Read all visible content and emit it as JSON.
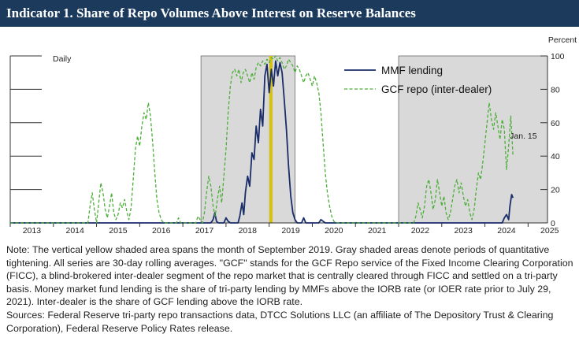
{
  "title": "Indicator 1. Share of Repo Volumes Above Interest on Reserve Balances",
  "chart_data": {
    "type": "line",
    "frequency_label": "Daily",
    "y_unit_label": "Percent",
    "ylim": [
      0,
      100
    ],
    "y_ticks": [
      0,
      20,
      40,
      60,
      80,
      100
    ],
    "x_ticks": [
      "2013",
      "2014",
      "2015",
      "2016",
      "2017",
      "2018",
      "2019",
      "2020",
      "2021",
      "2022",
      "2023",
      "2024",
      "2025"
    ],
    "xlim": [
      2013.0,
      2025.45
    ],
    "annotation": {
      "text": "Jan. 15",
      "x": 2024.54,
      "y": 52
    },
    "shaded_periods_gray": [
      [
        2017.42,
        2019.6
      ],
      [
        2022.0,
        2025.45
      ]
    ],
    "shaded_period_yellow": [
      2019.0,
      2019.08
    ],
    "series": [
      {
        "name": "MMF lending",
        "color": "#1a2d6b",
        "style": "solid",
        "points": [
          [
            2013.0,
            0
          ],
          [
            2017.65,
            0
          ],
          [
            2017.7,
            2
          ],
          [
            2017.74,
            6
          ],
          [
            2017.78,
            1
          ],
          [
            2017.82,
            0
          ],
          [
            2017.95,
            0
          ],
          [
            2018.0,
            3
          ],
          [
            2018.05,
            1
          ],
          [
            2018.1,
            0
          ],
          [
            2018.28,
            0
          ],
          [
            2018.32,
            4
          ],
          [
            2018.37,
            12
          ],
          [
            2018.41,
            5
          ],
          [
            2018.45,
            18
          ],
          [
            2018.5,
            28
          ],
          [
            2018.55,
            22
          ],
          [
            2018.6,
            42
          ],
          [
            2018.65,
            38
          ],
          [
            2018.7,
            58
          ],
          [
            2018.75,
            48
          ],
          [
            2018.8,
            68
          ],
          [
            2018.85,
            58
          ],
          [
            2018.9,
            88
          ],
          [
            2018.95,
            95
          ],
          [
            2019.0,
            78
          ],
          [
            2019.05,
            92
          ],
          [
            2019.1,
            82
          ],
          [
            2019.15,
            97
          ],
          [
            2019.2,
            88
          ],
          [
            2019.25,
            96
          ],
          [
            2019.3,
            90
          ],
          [
            2019.35,
            74
          ],
          [
            2019.4,
            56
          ],
          [
            2019.45,
            34
          ],
          [
            2019.5,
            16
          ],
          [
            2019.55,
            6
          ],
          [
            2019.6,
            2
          ],
          [
            2019.65,
            0
          ],
          [
            2019.75,
            0
          ],
          [
            2019.8,
            3
          ],
          [
            2019.85,
            0
          ],
          [
            2020.15,
            0
          ],
          [
            2020.2,
            2
          ],
          [
            2020.25,
            1
          ],
          [
            2020.3,
            0
          ],
          [
            2024.4,
            0
          ],
          [
            2024.45,
            3
          ],
          [
            2024.5,
            5
          ],
          [
            2024.55,
            2
          ],
          [
            2024.58,
            10
          ],
          [
            2024.62,
            17
          ],
          [
            2024.65,
            15
          ]
        ]
      },
      {
        "name": "GCF repo (inter-dealer)",
        "color": "#4caf38",
        "style": "dashed",
        "points": [
          [
            2013.0,
            0
          ],
          [
            2014.8,
            0
          ],
          [
            2014.85,
            10
          ],
          [
            2014.9,
            18
          ],
          [
            2014.95,
            8
          ],
          [
            2015.0,
            0
          ],
          [
            2015.05,
            12
          ],
          [
            2015.1,
            24
          ],
          [
            2015.15,
            18
          ],
          [
            2015.2,
            8
          ],
          [
            2015.25,
            3
          ],
          [
            2015.3,
            10
          ],
          [
            2015.35,
            18
          ],
          [
            2015.4,
            6
          ],
          [
            2015.45,
            2
          ],
          [
            2015.5,
            5
          ],
          [
            2015.55,
            12
          ],
          [
            2015.6,
            9
          ],
          [
            2015.65,
            14
          ],
          [
            2015.7,
            7
          ],
          [
            2015.75,
            2
          ],
          [
            2015.8,
            9
          ],
          [
            2015.85,
            26
          ],
          [
            2015.9,
            44
          ],
          [
            2015.95,
            52
          ],
          [
            2016.0,
            46
          ],
          [
            2016.05,
            58
          ],
          [
            2016.1,
            66
          ],
          [
            2016.15,
            62
          ],
          [
            2016.2,
            72
          ],
          [
            2016.25,
            64
          ],
          [
            2016.3,
            48
          ],
          [
            2016.35,
            30
          ],
          [
            2016.4,
            14
          ],
          [
            2016.45,
            6
          ],
          [
            2016.5,
            2
          ],
          [
            2016.55,
            0
          ],
          [
            2016.85,
            0
          ],
          [
            2016.9,
            3
          ],
          [
            2016.95,
            0
          ],
          [
            2017.3,
            0
          ],
          [
            2017.35,
            4
          ],
          [
            2017.4,
            2
          ],
          [
            2017.45,
            0
          ],
          [
            2017.5,
            6
          ],
          [
            2017.55,
            18
          ],
          [
            2017.6,
            28
          ],
          [
            2017.65,
            22
          ],
          [
            2017.7,
            10
          ],
          [
            2017.75,
            4
          ],
          [
            2017.8,
            14
          ],
          [
            2017.85,
            22
          ],
          [
            2017.9,
            12
          ],
          [
            2017.95,
            28
          ],
          [
            2018.0,
            44
          ],
          [
            2018.05,
            66
          ],
          [
            2018.1,
            82
          ],
          [
            2018.15,
            90
          ],
          [
            2018.2,
            92
          ],
          [
            2018.25,
            88
          ],
          [
            2018.3,
            92
          ],
          [
            2018.35,
            84
          ],
          [
            2018.4,
            90
          ],
          [
            2018.45,
            92
          ],
          [
            2018.5,
            88
          ],
          [
            2018.55,
            84
          ],
          [
            2018.6,
            90
          ],
          [
            2018.65,
            86
          ],
          [
            2018.7,
            93
          ],
          [
            2018.75,
            96
          ],
          [
            2018.8,
            94
          ],
          [
            2018.85,
            97
          ],
          [
            2018.9,
            95
          ],
          [
            2018.95,
            98
          ],
          [
            2019.0,
            96
          ],
          [
            2019.05,
            99
          ],
          [
            2019.1,
            98
          ],
          [
            2019.15,
            100
          ],
          [
            2019.2,
            97
          ],
          [
            2019.25,
            99
          ],
          [
            2019.3,
            96
          ],
          [
            2019.35,
            92
          ],
          [
            2019.4,
            94
          ],
          [
            2019.45,
            98
          ],
          [
            2019.5,
            96
          ],
          [
            2019.55,
            94
          ],
          [
            2019.6,
            90
          ],
          [
            2019.65,
            94
          ],
          [
            2019.7,
            92
          ],
          [
            2019.75,
            88
          ],
          [
            2019.8,
            84
          ],
          [
            2019.85,
            88
          ],
          [
            2019.9,
            90
          ],
          [
            2019.95,
            86
          ],
          [
            2020.0,
            82
          ],
          [
            2020.05,
            88
          ],
          [
            2020.1,
            84
          ],
          [
            2020.15,
            78
          ],
          [
            2020.2,
            66
          ],
          [
            2020.25,
            48
          ],
          [
            2020.3,
            30
          ],
          [
            2020.35,
            18
          ],
          [
            2020.4,
            10
          ],
          [
            2020.45,
            4
          ],
          [
            2020.5,
            1
          ],
          [
            2020.55,
            0
          ],
          [
            2022.35,
            0
          ],
          [
            2022.4,
            4
          ],
          [
            2022.45,
            12
          ],
          [
            2022.5,
            8
          ],
          [
            2022.55,
            3
          ],
          [
            2022.6,
            10
          ],
          [
            2022.65,
            22
          ],
          [
            2022.7,
            26
          ],
          [
            2022.75,
            18
          ],
          [
            2022.8,
            8
          ],
          [
            2022.85,
            14
          ],
          [
            2022.9,
            26
          ],
          [
            2022.95,
            18
          ],
          [
            2023.0,
            10
          ],
          [
            2023.05,
            16
          ],
          [
            2023.1,
            6
          ],
          [
            2023.15,
            2
          ],
          [
            2023.2,
            6
          ],
          [
            2023.25,
            14
          ],
          [
            2023.3,
            22
          ],
          [
            2023.35,
            26
          ],
          [
            2023.4,
            18
          ],
          [
            2023.45,
            24
          ],
          [
            2023.5,
            16
          ],
          [
            2023.55,
            10
          ],
          [
            2023.6,
            14
          ],
          [
            2023.65,
            6
          ],
          [
            2023.7,
            2
          ],
          [
            2023.75,
            8
          ],
          [
            2023.8,
            20
          ],
          [
            2023.85,
            30
          ],
          [
            2023.9,
            26
          ],
          [
            2023.95,
            36
          ],
          [
            2024.0,
            48
          ],
          [
            2024.05,
            60
          ],
          [
            2024.1,
            72
          ],
          [
            2024.15,
            62
          ],
          [
            2024.2,
            56
          ],
          [
            2024.25,
            66
          ],
          [
            2024.3,
            58
          ],
          [
            2024.35,
            50
          ],
          [
            2024.4,
            62
          ],
          [
            2024.45,
            56
          ],
          [
            2024.5,
            32
          ],
          [
            2024.55,
            46
          ],
          [
            2024.6,
            64
          ],
          [
            2024.65,
            40
          ]
        ]
      }
    ]
  },
  "notes": {
    "note": "Note: The vertical yellow shaded area spans the month of September 2019. Gray shaded areas denote periods of quantitative tightening. All series are 30-day rolling averages. \"GCF\" stands for the GCF Repo service of the Fixed Income Clearing Corporation (FICC), a blind-brokered inter-dealer segment of the repo market that is centrally cleared through FICC and settled on a tri-party basis. Money market fund lending is the share of tri-party lending by MMFs above the IORB rate (or IOER rate prior to July 29, 2021). Inter-dealer is the share of GCF lending above the IORB rate.",
    "sources": "Sources: Federal Reserve tri-party repo transactions data, DTCC Solutions LLC (an affiliate of The Depository Trust & Clearing Corporation), Federal Reserve Policy Rates release."
  }
}
